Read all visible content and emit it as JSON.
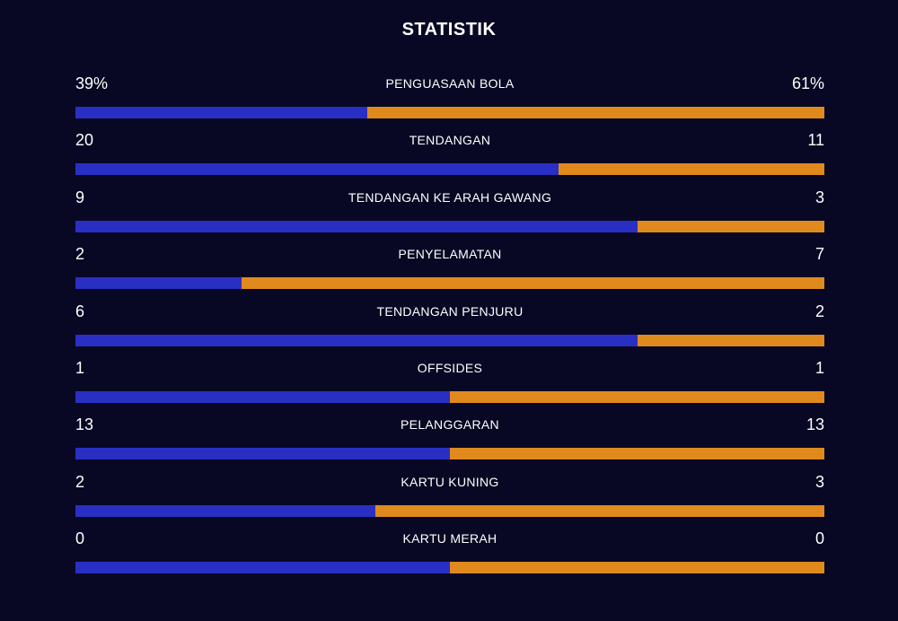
{
  "title": "STATISTIK",
  "colors": {
    "background": "#080824",
    "left_team_bar": "#2a2fc4",
    "right_team_bar": "#e08a1d",
    "text": "#ffffff"
  },
  "stats": [
    {
      "label": "PENGUASAAN BOLA",
      "left": "39%",
      "right": "61%",
      "left_share": 0.39
    },
    {
      "label": "TENDANGAN",
      "left": "20",
      "right": "11",
      "left_share": 0.645
    },
    {
      "label": "TENDANGAN KE ARAH GAWANG",
      "left": "9",
      "right": "3",
      "left_share": 0.75
    },
    {
      "label": "PENYELAMATAN",
      "left": "2",
      "right": "7",
      "left_share": 0.222
    },
    {
      "label": "TENDANGAN PENJURU",
      "left": "6",
      "right": "2",
      "left_share": 0.75
    },
    {
      "label": "OFFSIDES",
      "left": "1",
      "right": "1",
      "left_share": 0.5
    },
    {
      "label": "PELANGGARAN",
      "left": "13",
      "right": "13",
      "left_share": 0.5
    },
    {
      "label": "KARTU KUNING",
      "left": "2",
      "right": "3",
      "left_share": 0.4
    },
    {
      "label": "KARTU MERAH",
      "left": "0",
      "right": "0",
      "left_share": 0.5
    }
  ]
}
